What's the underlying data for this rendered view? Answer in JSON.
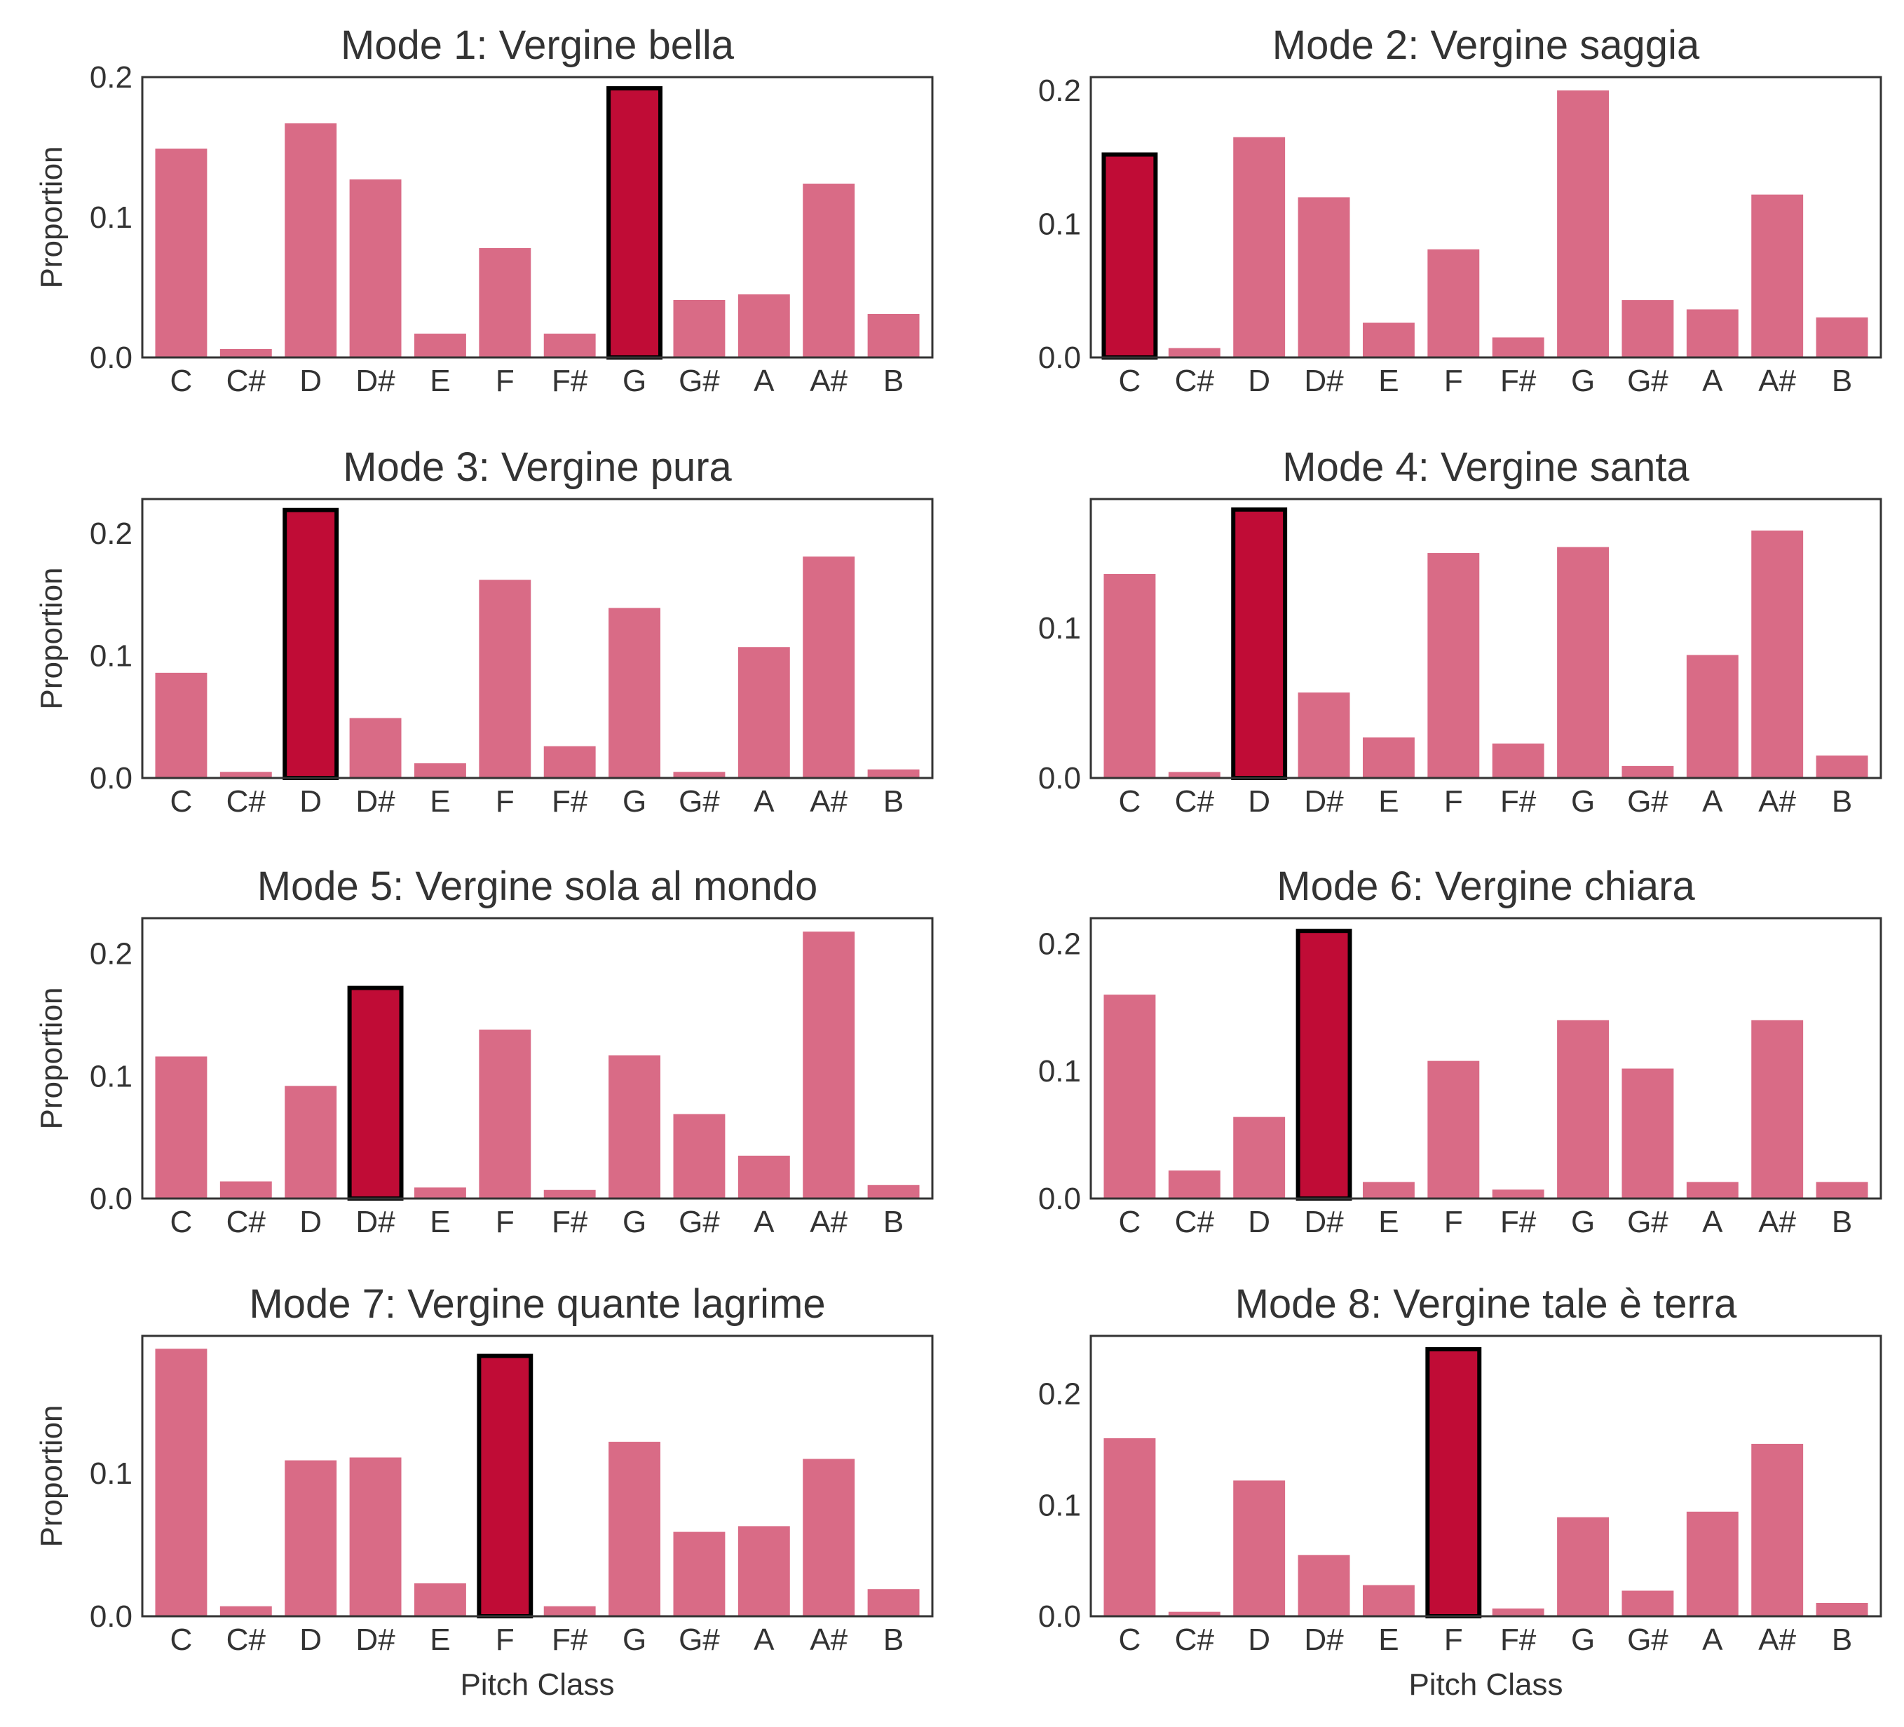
{
  "colors": {
    "bar": "#d96b86",
    "highlight": "#c00c36",
    "highlight_edge": "#000000",
    "frame": "#333333",
    "text": "#333333",
    "background": "#ffffff"
  },
  "chart_data": [
    {
      "type": "bar",
      "title": "Mode 1: Vergine bella",
      "categories": [
        "C",
        "C#",
        "D",
        "D#",
        "E",
        "F",
        "F#",
        "G",
        "G#",
        "A",
        "A#",
        "B"
      ],
      "values": [
        0.149,
        0.006,
        0.167,
        0.127,
        0.017,
        0.078,
        0.017,
        0.192,
        0.041,
        0.045,
        0.124,
        0.031
      ],
      "highlight_index": 7,
      "ylim": [
        0,
        0.2
      ],
      "yticks": [
        "0.0",
        "0.1",
        "0.2"
      ],
      "ylabel": "Proportion",
      "xlabel": ""
    },
    {
      "type": "bar",
      "title": "Mode 2: Vergine saggia",
      "categories": [
        "C",
        "C#",
        "D",
        "D#",
        "E",
        "F",
        "F#",
        "G",
        "G#",
        "A",
        "A#",
        "B"
      ],
      "values": [
        0.152,
        0.007,
        0.165,
        0.12,
        0.026,
        0.081,
        0.015,
        0.2,
        0.043,
        0.036,
        0.122,
        0.03
      ],
      "highlight_index": 0,
      "ylim": [
        0,
        0.21
      ],
      "yticks": [
        "0.0",
        "0.1",
        "0.2"
      ],
      "ylabel": "",
      "xlabel": ""
    },
    {
      "type": "bar",
      "title": "Mode 3: Vergine pura",
      "categories": [
        "C",
        "C#",
        "D",
        "D#",
        "E",
        "F",
        "F#",
        "G",
        "G#",
        "A",
        "A#",
        "B"
      ],
      "values": [
        0.086,
        0.005,
        0.219,
        0.049,
        0.012,
        0.162,
        0.026,
        0.139,
        0.005,
        0.107,
        0.181,
        0.007
      ],
      "highlight_index": 2,
      "ylim": [
        0,
        0.228
      ],
      "yticks": [
        "0.0",
        "0.1",
        "0.2"
      ],
      "ylabel": "Proportion",
      "xlabel": ""
    },
    {
      "type": "bar",
      "title": "Mode 4: Vergine santa",
      "categories": [
        "C",
        "C#",
        "D",
        "D#",
        "E",
        "F",
        "F#",
        "G",
        "G#",
        "A",
        "A#",
        "B"
      ],
      "values": [
        0.136,
        0.004,
        0.179,
        0.057,
        0.027,
        0.15,
        0.023,
        0.154,
        0.008,
        0.082,
        0.165,
        0.015
      ],
      "highlight_index": 2,
      "ylim": [
        0,
        0.186
      ],
      "yticks": [
        "0.0",
        "0.1"
      ],
      "ylabel": "",
      "xlabel": ""
    },
    {
      "type": "bar",
      "title": "Mode 5: Vergine sola al mondo",
      "categories": [
        "C",
        "C#",
        "D",
        "D#",
        "E",
        "F",
        "F#",
        "G",
        "G#",
        "A",
        "A#",
        "B"
      ],
      "values": [
        0.116,
        0.014,
        0.092,
        0.172,
        0.009,
        0.138,
        0.007,
        0.117,
        0.069,
        0.035,
        0.218,
        0.011
      ],
      "highlight_index": 3,
      "ylim": [
        0,
        0.229
      ],
      "yticks": [
        "0.0",
        "0.1",
        "0.2"
      ],
      "ylabel": "Proportion",
      "xlabel": ""
    },
    {
      "type": "bar",
      "title": "Mode 6: Vergine chiara",
      "categories": [
        "C",
        "C#",
        "D",
        "D#",
        "E",
        "F",
        "F#",
        "G",
        "G#",
        "A",
        "A#",
        "B"
      ],
      "values": [
        0.16,
        0.022,
        0.064,
        0.21,
        0.013,
        0.108,
        0.007,
        0.14,
        0.102,
        0.013,
        0.14,
        0.013
      ],
      "highlight_index": 3,
      "ylim": [
        0,
        0.22
      ],
      "yticks": [
        "0.0",
        "0.1",
        "0.2"
      ],
      "ylabel": "",
      "xlabel": ""
    },
    {
      "type": "bar",
      "title": "Mode 7: Vergine quante lagrime",
      "categories": [
        "C",
        "C#",
        "D",
        "D#",
        "E",
        "F",
        "F#",
        "G",
        "G#",
        "A",
        "A#",
        "B"
      ],
      "values": [
        0.187,
        0.007,
        0.109,
        0.111,
        0.023,
        0.182,
        0.007,
        0.122,
        0.059,
        0.063,
        0.11,
        0.019
      ],
      "highlight_index": 5,
      "ylim": [
        0,
        0.196
      ],
      "yticks": [
        "0.0",
        "0.1"
      ],
      "ylabel": "Proportion",
      "xlabel": "Pitch Class"
    },
    {
      "type": "bar",
      "title": "Mode 8: Vergine tale è terra",
      "categories": [
        "C",
        "C#",
        "D",
        "D#",
        "E",
        "F",
        "F#",
        "G",
        "G#",
        "A",
        "A#",
        "B"
      ],
      "values": [
        0.16,
        0.004,
        0.122,
        0.055,
        0.028,
        0.24,
        0.007,
        0.089,
        0.023,
        0.094,
        0.155,
        0.012
      ],
      "highlight_index": 5,
      "ylim": [
        0,
        0.252
      ],
      "yticks": [
        "0.0",
        "0.1",
        "0.2"
      ],
      "ylabel": "",
      "xlabel": "Pitch Class"
    }
  ]
}
